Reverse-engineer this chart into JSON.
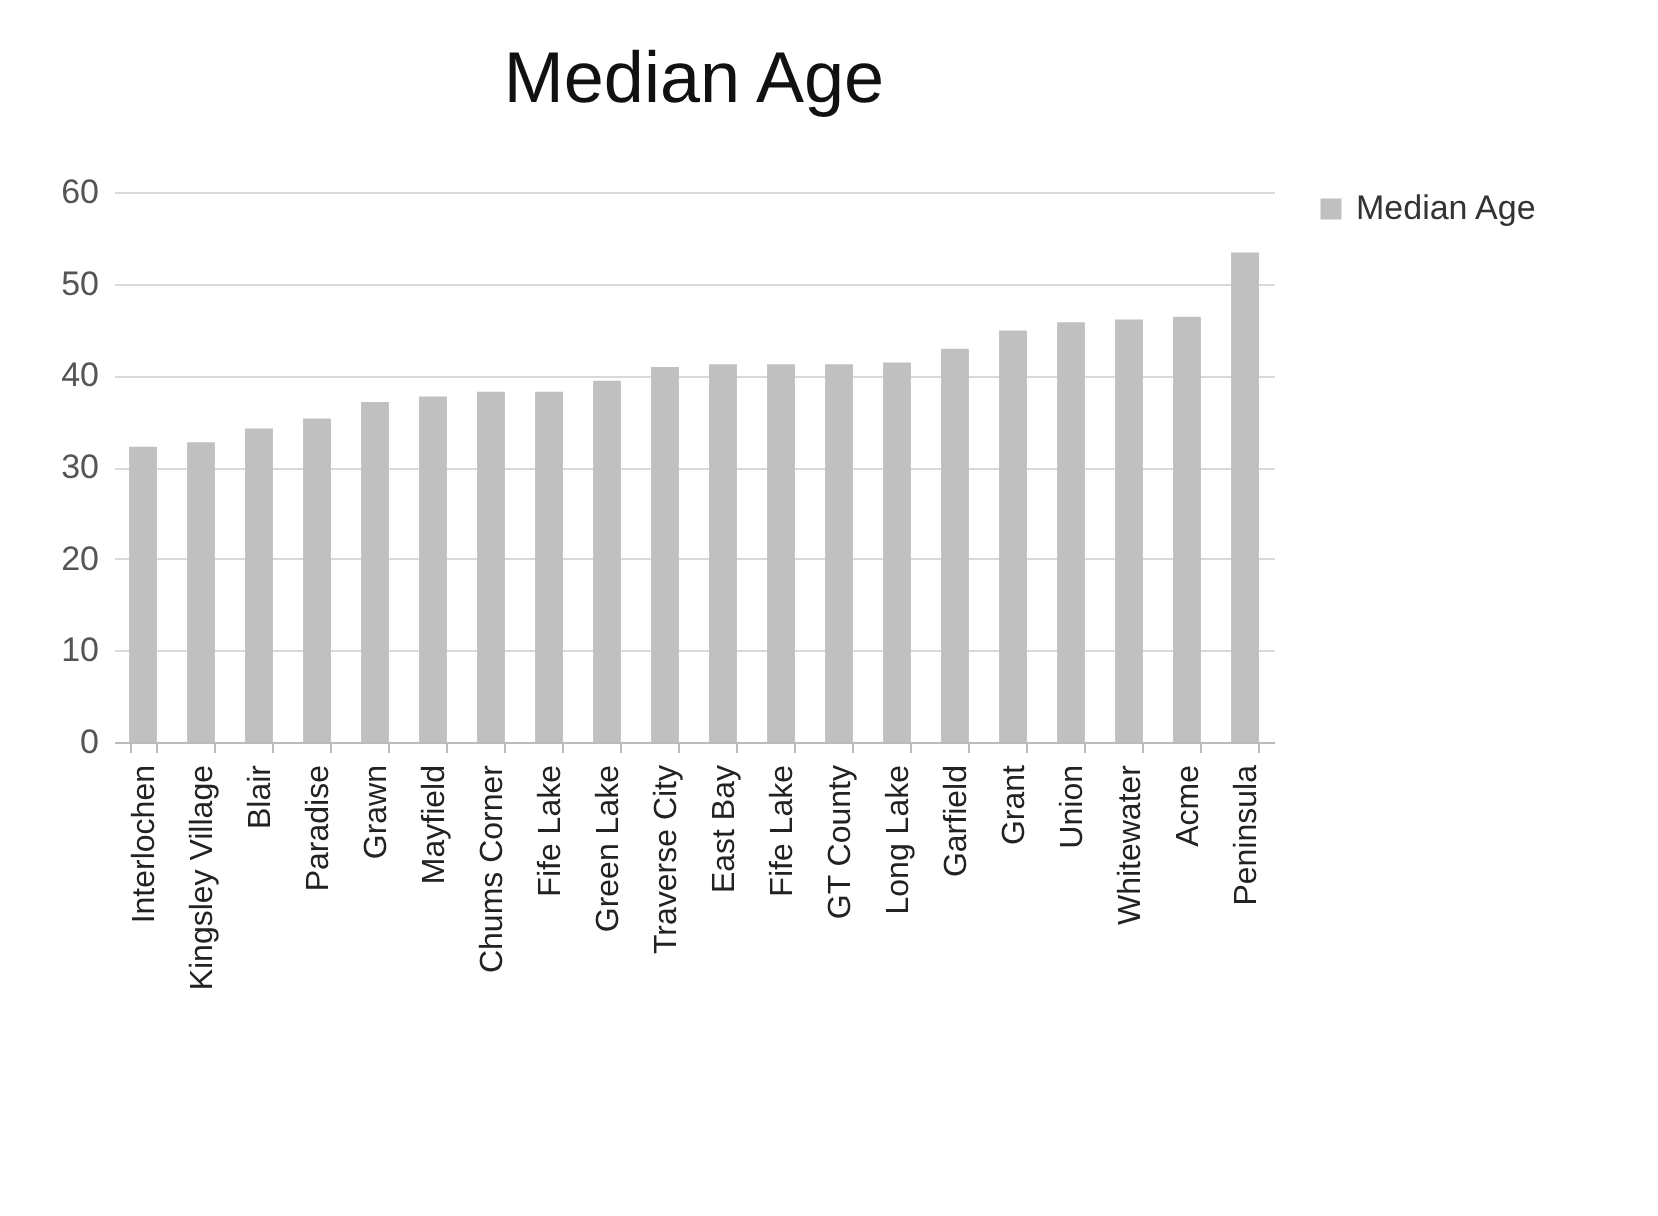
{
  "chart_data": {
    "type": "bar",
    "title": "Median Age",
    "categories": [
      "Interlochen",
      "Kingsley Village",
      "Blair",
      "Paradise",
      "Grawn",
      "Mayfield",
      "Chums Corner",
      "Fife Lake",
      "Green Lake",
      "Traverse City",
      "East Bay",
      "Fife Lake",
      "GT County",
      "Long Lake",
      "Garfield",
      "Grant",
      "Union",
      "Whitewater",
      "Acme",
      "Peninsula"
    ],
    "series": [
      {
        "name": "Median Age",
        "color": "#c0c0c0",
        "values": [
          32.2,
          32.7,
          34.2,
          35.3,
          37.1,
          37.7,
          38.2,
          38.2,
          39.4,
          40.9,
          41.2,
          41.2,
          41.2,
          41.4,
          42.9,
          44.9,
          45.8,
          46.1,
          46.4,
          53.4
        ]
      }
    ],
    "ylim": [
      0,
      60
    ],
    "yticks": [
      0,
      10,
      20,
      30,
      40,
      50,
      60
    ],
    "grid": "y",
    "legend": "right"
  }
}
